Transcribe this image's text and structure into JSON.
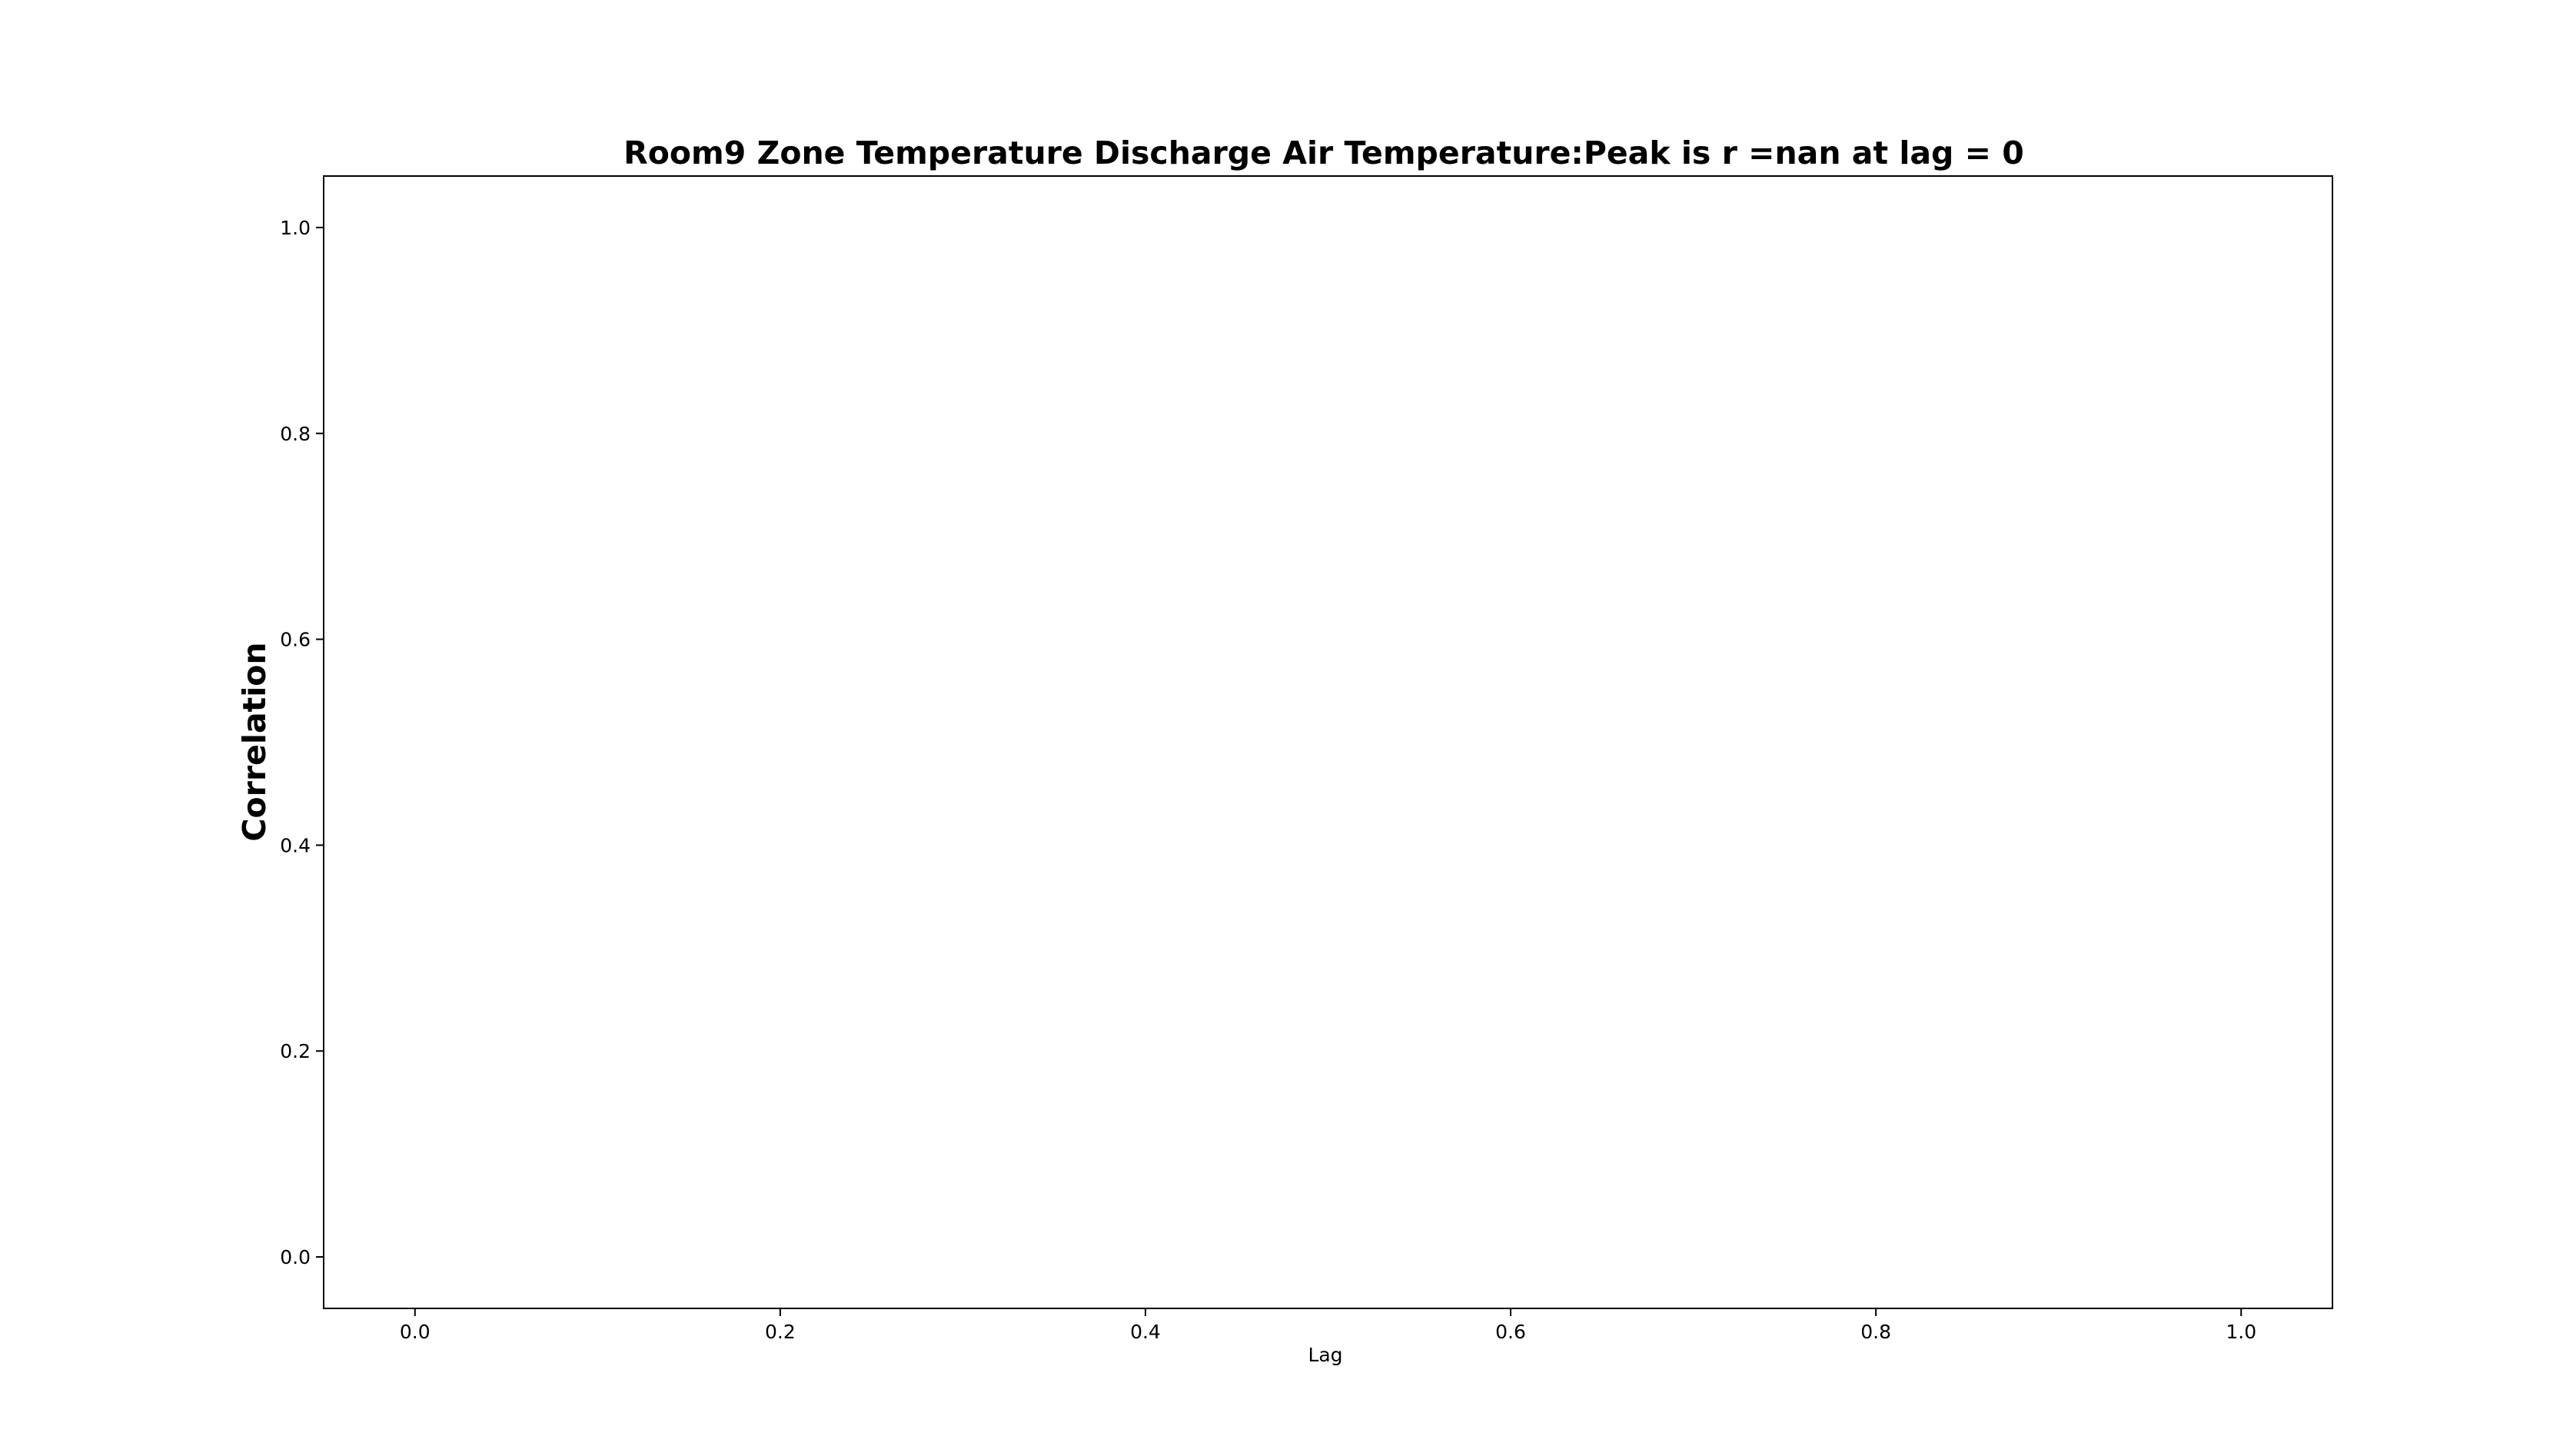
{
  "chart_data": {
    "type": "line",
    "title": "Room9 Zone Temperature Discharge Air Temperature:Peak is r =nan at lag = 0",
    "xlabel": "Lag",
    "ylabel": "Correlation",
    "xlim": [
      -0.05,
      1.05
    ],
    "ylim": [
      -0.05,
      1.05
    ],
    "xticks": [
      0.0,
      0.2,
      0.4,
      0.6,
      0.8,
      1.0
    ],
    "xtick_labels": [
      "0.0",
      "0.2",
      "0.4",
      "0.6",
      "0.8",
      "1.0"
    ],
    "yticks": [
      0.0,
      0.2,
      0.4,
      0.6,
      0.8,
      1.0
    ],
    "ytick_labels": [
      "0.0",
      "0.2",
      "0.4",
      "0.6",
      "0.8",
      "1.0"
    ],
    "series": [],
    "grid": false,
    "legend": "none",
    "colors": {
      "axes": "#000000",
      "background": "#ffffff"
    }
  }
}
